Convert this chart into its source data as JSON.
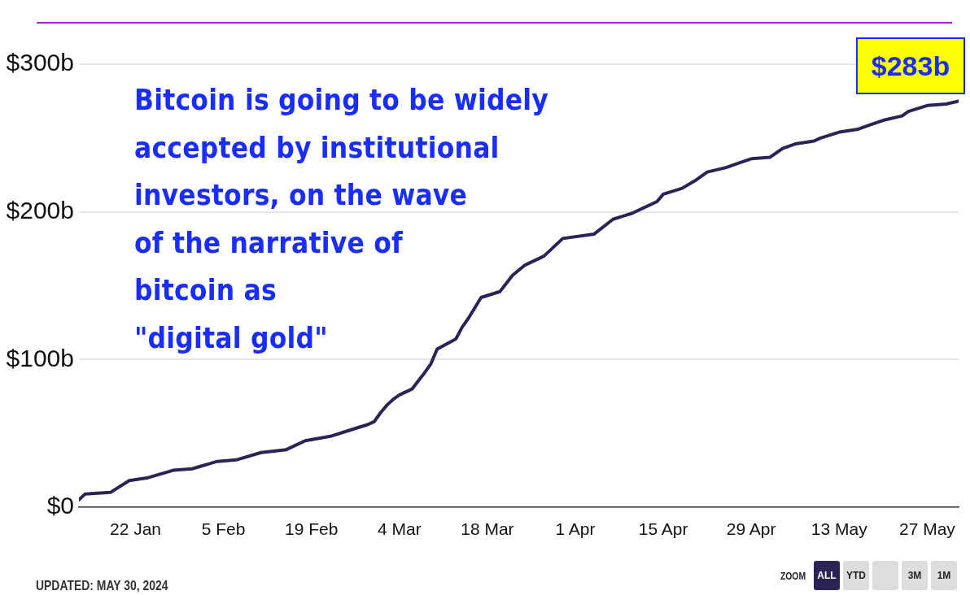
{
  "chart_data": {
    "type": "line",
    "x": [
      "--01-13",
      "--01-14",
      "--01-18",
      "--01-21",
      "--01-24",
      "--01-28",
      "--01-31",
      "--02-04",
      "--02-07",
      "--02-11",
      "--02-15",
      "--02-18",
      "--02-22",
      "--02-25",
      "--02-28",
      "--02-29",
      "--03-01",
      "--03-02",
      "--03-03",
      "--03-04",
      "--03-06",
      "--03-08",
      "--03-09",
      "--03-10",
      "--03-13",
      "--03-14",
      "--03-15",
      "--03-17",
      "--03-20",
      "--03-22",
      "--03-24",
      "--03-27",
      "--03-30",
      "--04-04",
      "--04-07",
      "--04-10",
      "--04-14",
      "--04-15",
      "--04-18",
      "--04-20",
      "--04-22",
      "--04-25",
      "--04-27",
      "--04-29",
      "--05-02",
      "--05-04",
      "--05-06",
      "--05-09",
      "--05-10",
      "--05-13",
      "--05-16",
      "--05-18",
      "--05-20",
      "--05-23",
      "--05-24",
      "--05-27",
      "--05-30",
      "--06-01"
    ],
    "series": [
      {
        "color": "#2b2356",
        "values": [
          5,
          9,
          10,
          18,
          20,
          25,
          26,
          31,
          32,
          37,
          39,
          45,
          48,
          52,
          56,
          58,
          64,
          69,
          73,
          76,
          80,
          91,
          97,
          107,
          114,
          122,
          128,
          142,
          146,
          157,
          164,
          170,
          182,
          185,
          195,
          199,
          207,
          212,
          216,
          221,
          227,
          230,
          233,
          236,
          237,
          243,
          246,
          248,
          250,
          254,
          256,
          259,
          262,
          265,
          268,
          272,
          273,
          275
        ]
      }
    ],
    "xlim": [
      "--01-13",
      "--06-01"
    ],
    "xticks": [
      {
        "value": "--01-22",
        "label": "22 Jan"
      },
      {
        "value": "--02-05",
        "label": "5 Feb"
      },
      {
        "value": "--02-19",
        "label": "19 Feb"
      },
      {
        "value": "--03-04",
        "label": "4 Mar"
      },
      {
        "value": "--03-18",
        "label": "18 Mar"
      },
      {
        "value": "--04-01",
        "label": "1 Apr"
      },
      {
        "value": "--04-15",
        "label": "15 Apr"
      },
      {
        "value": "--04-29",
        "label": "29 Apr"
      },
      {
        "value": "--05-13",
        "label": "13 May"
      },
      {
        "value": "--05-27",
        "label": "27 May"
      }
    ],
    "ylim": [
      0,
      300
    ],
    "yticks": [
      {
        "value": 0,
        "label": "$0"
      },
      {
        "value": 100,
        "label": "$100b"
      },
      {
        "value": 200,
        "label": "$200b"
      },
      {
        "value": 300,
        "label": "$300b"
      }
    ],
    "grid": "y",
    "legend": false,
    "annotations": [
      "Bitcoin is going to be widely\naccepted by institutional\ninvestors, on the wave\nof the narrative of\nbitcoin as\n\"digital gold\"",
      "$283b",
      "UPDATED: MAY 30, 2024",
      "ZOOM",
      "ALL",
      "YTD",
      "3M",
      "1M"
    ]
  }
}
